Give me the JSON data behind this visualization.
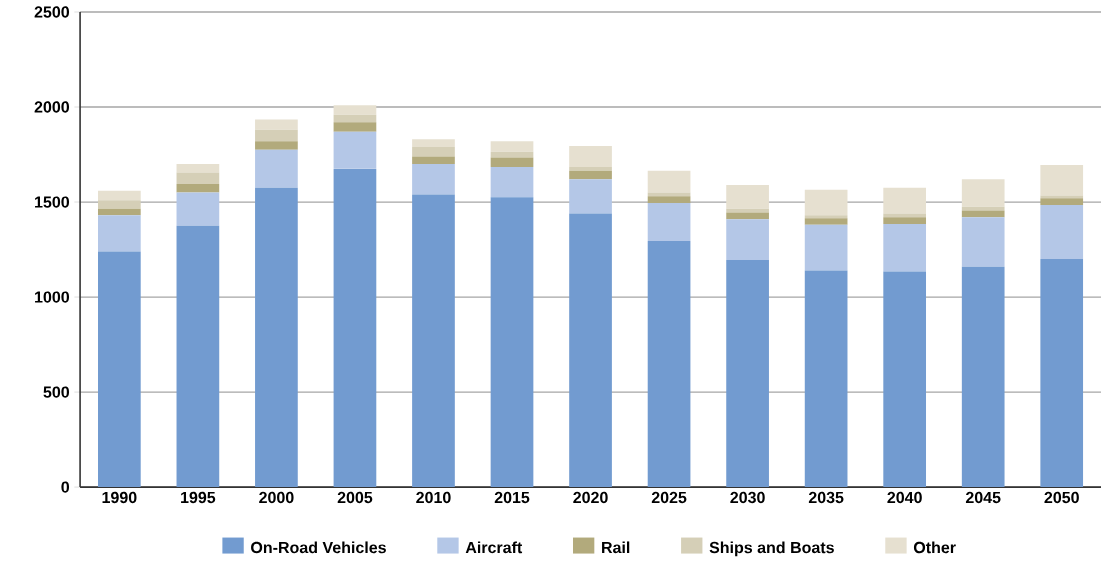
{
  "chart_data": {
    "type": "bar",
    "stacked": true,
    "categories": [
      "1990",
      "1995",
      "2000",
      "2005",
      "2010",
      "2015",
      "2020",
      "2025",
      "2030",
      "2035",
      "2040",
      "2045",
      "2050"
    ],
    "series": [
      {
        "name": "On-Road Vehicles",
        "color": "#729bd0",
        "values": [
          1240,
          1375,
          1575,
          1675,
          1540,
          1525,
          1440,
          1295,
          1195,
          1140,
          1135,
          1160,
          1200
        ]
      },
      {
        "name": "Aircraft",
        "color": "#b4c7e7",
        "values": [
          190,
          175,
          200,
          195,
          160,
          160,
          180,
          200,
          215,
          240,
          250,
          260,
          285
        ]
      },
      {
        "name": "Rail",
        "color": "#b2aa7c",
        "values": [
          35,
          45,
          45,
          50,
          40,
          50,
          45,
          35,
          35,
          35,
          35,
          35,
          35
        ]
      },
      {
        "name": "Ships and Boats",
        "color": "#d5cfb7",
        "values": [
          45,
          60,
          60,
          40,
          50,
          30,
          20,
          20,
          20,
          15,
          20,
          20,
          15
        ]
      },
      {
        "name": "Other",
        "color": "#e6e0d0",
        "values": [
          50,
          45,
          55,
          50,
          40,
          55,
          110,
          115,
          125,
          135,
          135,
          145,
          160
        ]
      }
    ],
    "ylim": [
      0,
      2500
    ],
    "yticks": [
      0,
      500,
      1000,
      1500,
      2000,
      2500
    ],
    "grid": "y",
    "legend": "bottom"
  }
}
